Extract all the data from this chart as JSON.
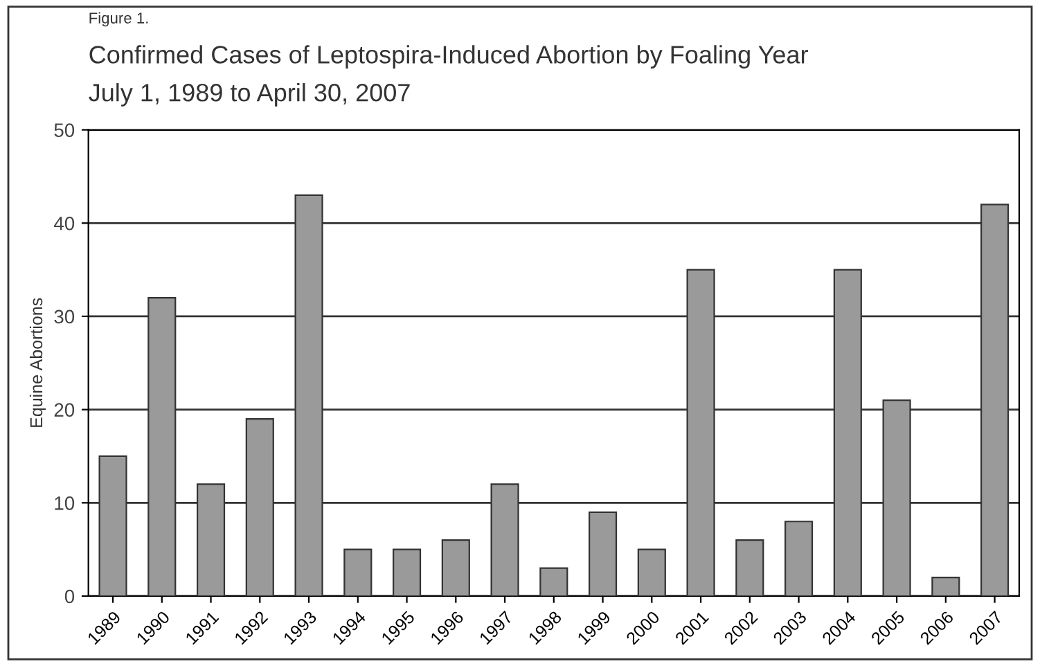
{
  "chart_data": {
    "type": "bar",
    "title": "Confirmed Cases of Leptospira-Induced Abortion by Foaling Year",
    "subtitle": "July 1, 1989 to April 30, 2007",
    "annotations": [
      "Figure 1."
    ],
    "ylabel": "Equine Abortions",
    "categories": [
      "1989",
      "1990",
      "1991",
      "1992",
      "1993",
      "1994",
      "1995",
      "1996",
      "1997",
      "1998",
      "1999",
      "2000",
      "2001",
      "2002",
      "2003",
      "2004",
      "2005",
      "2006",
      "2007"
    ],
    "values": [
      15,
      32,
      12,
      19,
      43,
      5,
      5,
      6,
      12,
      3,
      9,
      5,
      35,
      6,
      8,
      35,
      21,
      2,
      42
    ],
    "color": "#9a9a9a",
    "ylim": [
      0,
      50
    ],
    "yticks": [
      0,
      10,
      20,
      30,
      40,
      50
    ],
    "grid": "y",
    "legend": false
  }
}
